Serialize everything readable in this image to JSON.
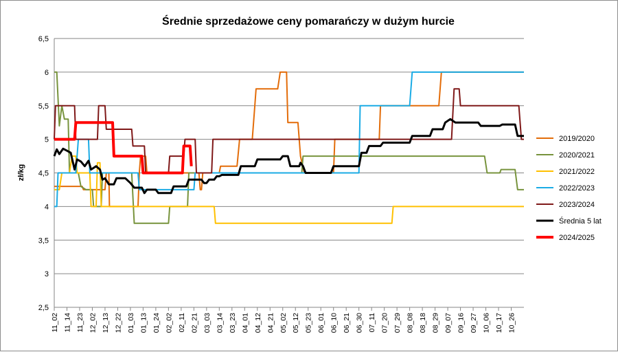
{
  "chart_data": {
    "type": "line",
    "title": "Średnie sprzedażowe ceny pomarańczy w dużym hurcie",
    "ylabel": "zł/kg",
    "xlabel": "",
    "ylim": [
      2.5,
      6.5
    ],
    "yticks": [
      "2,5",
      "3",
      "3,5",
      "4",
      "4,5",
      "5",
      "5,5",
      "6",
      "6,5"
    ],
    "ytick_values": [
      2.5,
      3,
      3.5,
      4,
      4.5,
      5,
      5.5,
      6,
      6.5
    ],
    "x": [
      "11_02",
      "11_14",
      "11_23",
      "12_02",
      "12_13",
      "12_22",
      "01_03",
      "01_13",
      "01_24",
      "02_02",
      "02_11",
      "02_21",
      "03_03",
      "03_14",
      "03_23",
      "04_01",
      "04_12",
      "04_21",
      "05_02",
      "05_12",
      "05_23",
      "06_01",
      "06_10",
      "06_21",
      "06_30",
      "07_11",
      "07_20",
      "07_29",
      "08_08",
      "08_18",
      "08_29",
      "09_07",
      "09_16",
      "09_27",
      "10_06",
      "10_17",
      "10_26"
    ],
    "grid": true,
    "legend_position": "right",
    "series": [
      {
        "name": "2019/2020",
        "color": "#e36c09",
        "width": 2,
        "points": [
          [
            0,
            4.3
          ],
          [
            0.3,
            4.3
          ],
          [
            2.2,
            4.3
          ],
          [
            2.3,
            4.25
          ],
          [
            4.0,
            4.25
          ],
          [
            4.1,
            4.5
          ],
          [
            4.3,
            4.5
          ],
          [
            4.35,
            4.0
          ],
          [
            6.6,
            4.0
          ],
          [
            6.7,
            4.5
          ],
          [
            6.8,
            4.75
          ],
          [
            7.2,
            4.75
          ],
          [
            7.3,
            4.5
          ],
          [
            11.4,
            4.5
          ],
          [
            11.5,
            4.25
          ],
          [
            11.6,
            4.25
          ],
          [
            11.7,
            4.5
          ],
          [
            13.0,
            4.5
          ],
          [
            13.1,
            4.6
          ],
          [
            14.4,
            4.6
          ],
          [
            14.6,
            5.0
          ],
          [
            15.6,
            5.0
          ],
          [
            15.8,
            5.5
          ],
          [
            15.9,
            5.75
          ],
          [
            17.6,
            5.75
          ],
          [
            17.8,
            6.0
          ],
          [
            18.3,
            6.0
          ],
          [
            18.4,
            5.25
          ],
          [
            19.2,
            5.25
          ],
          [
            19.4,
            4.75
          ],
          [
            19.7,
            4.5
          ],
          [
            22.0,
            4.5
          ],
          [
            22.1,
            5.0
          ],
          [
            25.6,
            5.0
          ],
          [
            25.7,
            5.5
          ],
          [
            30.3,
            5.5
          ],
          [
            30.5,
            6.0
          ],
          [
            37,
            6.0
          ]
        ]
      },
      {
        "name": "2020/2021",
        "color": "#77933c",
        "width": 2,
        "points": [
          [
            0,
            6.0
          ],
          [
            0.2,
            6.0
          ],
          [
            0.4,
            5.2
          ],
          [
            0.6,
            5.5
          ],
          [
            0.8,
            5.3
          ],
          [
            1.1,
            5.3
          ],
          [
            1.2,
            4.5
          ],
          [
            1.9,
            4.5
          ],
          [
            2.1,
            4.3
          ],
          [
            2.5,
            4.25
          ],
          [
            3.0,
            4.25
          ],
          [
            3.1,
            4.0
          ],
          [
            3.7,
            4.0
          ],
          [
            3.8,
            4.5
          ],
          [
            6.1,
            4.5
          ],
          [
            6.3,
            3.75
          ],
          [
            9.0,
            3.75
          ],
          [
            9.1,
            4.0
          ],
          [
            10.5,
            4.0
          ],
          [
            10.6,
            4.5
          ],
          [
            19.5,
            4.5
          ],
          [
            19.6,
            4.75
          ],
          [
            33.9,
            4.75
          ],
          [
            34.1,
            4.5
          ],
          [
            35.1,
            4.5
          ],
          [
            35.2,
            4.55
          ],
          [
            36.3,
            4.55
          ],
          [
            36.5,
            4.25
          ],
          [
            37,
            4.25
          ]
        ]
      },
      {
        "name": "2021/2022",
        "color": "#ffc000",
        "width": 2,
        "points": [
          [
            0,
            4.25
          ],
          [
            0.4,
            4.25
          ],
          [
            0.6,
            4.5
          ],
          [
            1.2,
            4.5
          ],
          [
            1.4,
            4.75
          ],
          [
            1.7,
            4.75
          ],
          [
            1.8,
            4.5
          ],
          [
            2.8,
            4.5
          ],
          [
            2.9,
            4.0
          ],
          [
            3.3,
            4.0
          ],
          [
            3.4,
            4.65
          ],
          [
            3.6,
            4.65
          ],
          [
            3.7,
            4.0
          ],
          [
            12.6,
            4.0
          ],
          [
            12.7,
            3.75
          ],
          [
            26.6,
            3.75
          ],
          [
            26.7,
            4.0
          ],
          [
            37,
            4.0
          ]
        ]
      },
      {
        "name": "2022/2023",
        "color": "#1aabe5",
        "width": 2,
        "points": [
          [
            0,
            4.0
          ],
          [
            0.2,
            4.0
          ],
          [
            0.3,
            4.5
          ],
          [
            1.7,
            4.5
          ],
          [
            1.9,
            5.0
          ],
          [
            2.7,
            5.0
          ],
          [
            2.8,
            4.5
          ],
          [
            6.6,
            4.5
          ],
          [
            6.7,
            4.25
          ],
          [
            11.0,
            4.25
          ],
          [
            11.1,
            4.5
          ],
          [
            24.0,
            4.5
          ],
          [
            24.1,
            5.5
          ],
          [
            28.0,
            5.5
          ],
          [
            28.2,
            6.0
          ],
          [
            37,
            6.0
          ]
        ]
      },
      {
        "name": "2023/2024",
        "color": "#7f1818",
        "width": 2,
        "points": [
          [
            0,
            5.0
          ],
          [
            0.1,
            5.5
          ],
          [
            1.6,
            5.5
          ],
          [
            1.7,
            5.0
          ],
          [
            3.4,
            5.0
          ],
          [
            3.5,
            5.5
          ],
          [
            4.0,
            5.5
          ],
          [
            4.1,
            5.15
          ],
          [
            6.1,
            5.15
          ],
          [
            6.2,
            4.9
          ],
          [
            7.1,
            4.9
          ],
          [
            7.2,
            4.5
          ],
          [
            9.0,
            4.5
          ],
          [
            9.1,
            4.75
          ],
          [
            10.2,
            4.75
          ],
          [
            10.3,
            5.0
          ],
          [
            11.1,
            5.0
          ],
          [
            11.2,
            4.5
          ],
          [
            12.4,
            4.5
          ],
          [
            12.5,
            5.0
          ],
          [
            31.3,
            5.0
          ],
          [
            31.5,
            5.75
          ],
          [
            31.9,
            5.75
          ],
          [
            32.0,
            5.5
          ],
          [
            36.6,
            5.5
          ],
          [
            36.8,
            5.0
          ],
          [
            37,
            5.0
          ]
        ]
      },
      {
        "name": "Średnia 5 lat",
        "color": "#000000",
        "width": 3,
        "points": [
          [
            0,
            4.75
          ],
          [
            0.2,
            4.85
          ],
          [
            0.4,
            4.78
          ],
          [
            0.7,
            4.86
          ],
          [
            1.0,
            4.83
          ],
          [
            1.3,
            4.8
          ],
          [
            1.6,
            4.55
          ],
          [
            1.8,
            4.7
          ],
          [
            2.1,
            4.67
          ],
          [
            2.4,
            4.6
          ],
          [
            2.7,
            4.68
          ],
          [
            2.9,
            4.55
          ],
          [
            3.3,
            4.6
          ],
          [
            3.6,
            4.55
          ],
          [
            3.8,
            4.4
          ],
          [
            4.0,
            4.42
          ],
          [
            4.3,
            4.33
          ],
          [
            4.7,
            4.33
          ],
          [
            4.9,
            4.42
          ],
          [
            5.6,
            4.42
          ],
          [
            6.0,
            4.35
          ],
          [
            6.3,
            4.28
          ],
          [
            6.9,
            4.28
          ],
          [
            7.1,
            4.2
          ],
          [
            7.3,
            4.25
          ],
          [
            8.0,
            4.25
          ],
          [
            8.2,
            4.2
          ],
          [
            9.2,
            4.2
          ],
          [
            9.4,
            4.3
          ],
          [
            10.4,
            4.3
          ],
          [
            10.6,
            4.4
          ],
          [
            11.6,
            4.4
          ],
          [
            11.8,
            4.35
          ],
          [
            12.0,
            4.35
          ],
          [
            12.2,
            4.4
          ],
          [
            12.6,
            4.4
          ],
          [
            12.8,
            4.45
          ],
          [
            13.0,
            4.45
          ],
          [
            13.2,
            4.47
          ],
          [
            14.5,
            4.47
          ],
          [
            14.7,
            4.6
          ],
          [
            15.8,
            4.6
          ],
          [
            16.0,
            4.7
          ],
          [
            17.8,
            4.7
          ],
          [
            18.0,
            4.75
          ],
          [
            18.4,
            4.75
          ],
          [
            18.6,
            4.6
          ],
          [
            19.3,
            4.6
          ],
          [
            19.4,
            4.65
          ],
          [
            19.6,
            4.6
          ],
          [
            19.8,
            4.5
          ],
          [
            21.8,
            4.5
          ],
          [
            22.0,
            4.6
          ],
          [
            24.0,
            4.6
          ],
          [
            24.2,
            4.8
          ],
          [
            24.6,
            4.8
          ],
          [
            24.8,
            4.9
          ],
          [
            25.7,
            4.9
          ],
          [
            25.9,
            4.95
          ],
          [
            28.0,
            4.95
          ],
          [
            28.2,
            5.05
          ],
          [
            29.6,
            5.05
          ],
          [
            29.8,
            5.15
          ],
          [
            30.6,
            5.15
          ],
          [
            30.8,
            5.25
          ],
          [
            31.2,
            5.3
          ],
          [
            31.6,
            5.25
          ],
          [
            33.4,
            5.25
          ],
          [
            33.6,
            5.2
          ],
          [
            35.1,
            5.2
          ],
          [
            35.3,
            5.22
          ],
          [
            36.3,
            5.22
          ],
          [
            36.5,
            5.05
          ],
          [
            37,
            5.05
          ]
        ]
      },
      {
        "name": "2024/2025",
        "color": "#ff0000",
        "width": 4,
        "points": [
          [
            0,
            5.0
          ],
          [
            1.6,
            5.0
          ],
          [
            1.7,
            5.25
          ],
          [
            4.6,
            5.25
          ],
          [
            4.7,
            4.75
          ],
          [
            6.9,
            4.75
          ],
          [
            7.0,
            4.5
          ],
          [
            10.1,
            4.5
          ],
          [
            10.2,
            4.9
          ],
          [
            10.7,
            4.9
          ],
          [
            10.8,
            4.6
          ]
        ]
      }
    ]
  }
}
